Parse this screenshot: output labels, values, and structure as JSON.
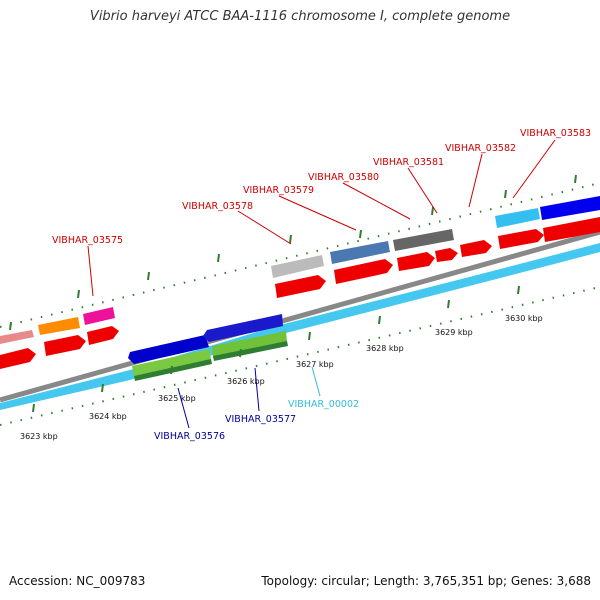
{
  "title": "Vibrio harveyi ATCC BAA-1116 chromosome I, complete genome",
  "footer": {
    "accession": "Accession: NC_009783",
    "topology": "Topology: circular; Length: 3,765,351 bp; Genes: 3,688"
  },
  "ticks": [
    {
      "label": "3623 kbp",
      "kbp": 3623
    },
    {
      "label": "3624 kbp",
      "kbp": 3624
    },
    {
      "label": "3625 kbp",
      "kbp": 3625
    },
    {
      "label": "3626 kbp",
      "kbp": 3626
    },
    {
      "label": "3627 kbp",
      "kbp": 3627
    },
    {
      "label": "3628 kbp",
      "kbp": 3628
    },
    {
      "label": "3629 kbp",
      "kbp": 3629
    },
    {
      "label": "3630 kbp",
      "kbp": 3630
    }
  ],
  "gene_labels": [
    {
      "text": "VIBHAR_03575",
      "color": "#cc0000"
    },
    {
      "text": "VIBHAR_03578",
      "color": "#cc0000"
    },
    {
      "text": "VIBHAR_03579",
      "color": "#cc0000"
    },
    {
      "text": "VIBHAR_03580",
      "color": "#cc0000"
    },
    {
      "text": "VIBHAR_03581",
      "color": "#cc0000"
    },
    {
      "text": "VIBHAR_03582",
      "color": "#cc0000"
    },
    {
      "text": "VIBHAR_03583",
      "color": "#cc0000"
    },
    {
      "text": "VIBHAR_00002",
      "color": "#33bbdd"
    },
    {
      "text": "VIBHAR_03576",
      "color": "#000099"
    },
    {
      "text": "VIBHAR_03577",
      "color": "#000099"
    }
  ],
  "colors": {
    "backbone": "#888888",
    "rna_track": "#44c8f0",
    "forward_cds": "#ee0000",
    "tick_mark": "#2e7d32"
  }
}
